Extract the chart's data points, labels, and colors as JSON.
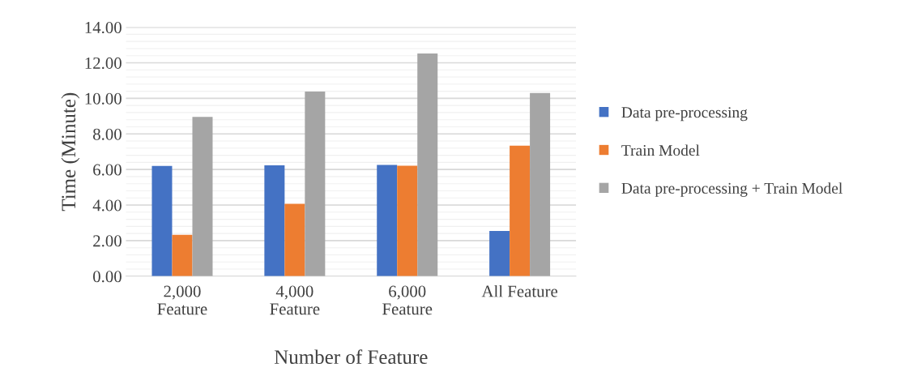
{
  "chart_data": {
    "type": "bar",
    "xlabel": "Number of Feature",
    "ylabel": "Time (Minute)",
    "categories": [
      "2,000\nFeature",
      "4,000\nFeature",
      "6,000\nFeature",
      "All Feature"
    ],
    "series": [
      {
        "name": "Data pre-processing",
        "color": "#4472c4",
        "values": [
          6.2,
          6.24,
          6.26,
          2.54
        ]
      },
      {
        "name": "Train Model",
        "color": "#ed7d31",
        "values": [
          2.33,
          4.07,
          6.21,
          7.34
        ]
      },
      {
        "name": "Data pre-processing + Train Model",
        "color": "#a5a5a5",
        "values": [
          8.96,
          10.38,
          12.52,
          10.3
        ]
      }
    ],
    "ylim": [
      0,
      14
    ],
    "yticks": [
      {
        "value": 0,
        "label": "0.00"
      },
      {
        "value": 2,
        "label": "2.00"
      },
      {
        "value": 4,
        "label": "4.00"
      },
      {
        "value": 6,
        "label": "6.00"
      },
      {
        "value": 8,
        "label": "8.00"
      },
      {
        "value": 10,
        "label": "10.00"
      },
      {
        "value": 12,
        "label": "12.00"
      },
      {
        "value": 14,
        "label": "14.00"
      }
    ],
    "grid": "y",
    "legend": "right"
  }
}
